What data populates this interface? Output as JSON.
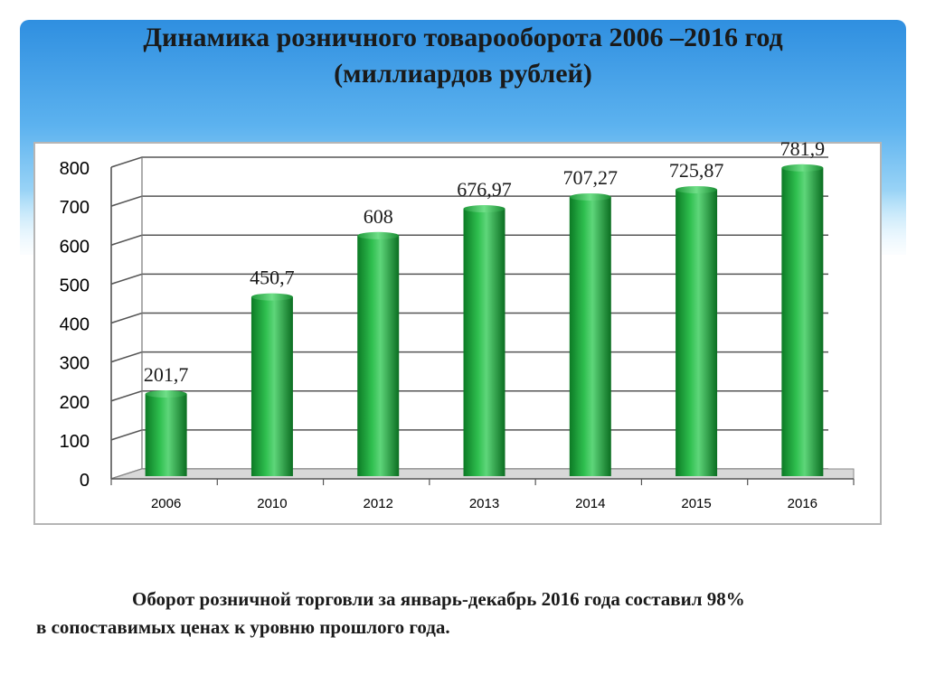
{
  "title": {
    "line1": "Динамика розничного товарооборота  2006 –2016 год",
    "line2": "(миллиардов рублей)"
  },
  "caption": {
    "line1": "Оборот розничной торговли за январь-декабрь  2016 года составил 98%",
    "line2": "в сопоставимых ценах к уровню прошлого года."
  },
  "chart_data": {
    "type": "bar",
    "categories": [
      "2006",
      "2010",
      "2012",
      "2013",
      "2014",
      "2015",
      "2016"
    ],
    "values": [
      201.7,
      450.7,
      608,
      676.97,
      707.27,
      725.87,
      781.9
    ],
    "value_labels": [
      "201,7",
      "450,7",
      "608",
      "676,97",
      "707,27",
      "725,87",
      "781,9"
    ],
    "ylim": [
      0,
      800
    ],
    "yticks": [
      0,
      100,
      200,
      300,
      400,
      500,
      600,
      700,
      800
    ],
    "grid": true,
    "bar_color": "#1fa63b",
    "legend": "none"
  }
}
